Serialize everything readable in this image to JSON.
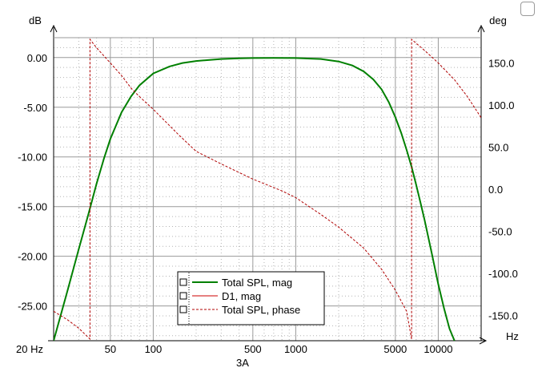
{
  "chart_data": {
    "type": "line",
    "xlabel": "3A",
    "x_unit": "Hz",
    "y_left_unit": "dB",
    "y_right_unit": "deg",
    "x_scale": "log",
    "xlim": [
      20,
      20000
    ],
    "ylim_left": [
      -28.5,
      2.0
    ],
    "ylim_right": [
      -180,
      180
    ],
    "x_ticks": [
      {
        "value": 20,
        "label": "20 Hz"
      },
      {
        "value": 50,
        "label": "50"
      },
      {
        "value": 100,
        "label": "100"
      },
      {
        "value": 500,
        "label": "500"
      },
      {
        "value": 1000,
        "label": "1000"
      },
      {
        "value": 5000,
        "label": "5000"
      },
      {
        "value": 10000,
        "label": "10000"
      }
    ],
    "y_left_ticks": [
      {
        "value": 0,
        "label": "0.00"
      },
      {
        "value": -5,
        "label": "-5.00"
      },
      {
        "value": -10,
        "label": "-10.00"
      },
      {
        "value": -15,
        "label": "-15.00"
      },
      {
        "value": -20,
        "label": "-20.00"
      },
      {
        "value": -25,
        "label": "-25.00"
      }
    ],
    "y_right_ticks": [
      {
        "value": 150,
        "label": "150.0"
      },
      {
        "value": 100,
        "label": "100.0"
      },
      {
        "value": 50,
        "label": "50.0"
      },
      {
        "value": 0,
        "label": "0.0"
      },
      {
        "value": -50,
        "label": "-50.0"
      },
      {
        "value": -100,
        "label": "-100.0"
      },
      {
        "value": -150,
        "label": "-150.0"
      }
    ],
    "grid": true,
    "legend_position": "bottom-center",
    "series": [
      {
        "name": "Total SPL, mag",
        "axis": "left",
        "color": "#008000",
        "style": "solid",
        "x": [
          20,
          25,
          30,
          35,
          40,
          45,
          50,
          60,
          70,
          80,
          100,
          130,
          160,
          200,
          300,
          400,
          500,
          700,
          1000,
          1500,
          2000,
          2500,
          3000,
          3500,
          4000,
          4500,
          5000,
          5500,
          6000,
          6500,
          7000,
          7500,
          8000,
          9000,
          10000,
          11000,
          12000,
          13000
        ],
        "values": [
          -28.5,
          -23.5,
          -19.3,
          -15.8,
          -12.7,
          -10.2,
          -8.2,
          -5.5,
          -3.9,
          -2.8,
          -1.6,
          -0.9,
          -0.55,
          -0.35,
          -0.15,
          -0.08,
          -0.05,
          -0.03,
          -0.05,
          -0.15,
          -0.4,
          -0.8,
          -1.4,
          -2.2,
          -3.2,
          -4.5,
          -6.0,
          -7.6,
          -9.3,
          -11.0,
          -12.8,
          -14.6,
          -16.3,
          -19.7,
          -22.8,
          -25.3,
          -27.3,
          -28.5
        ]
      },
      {
        "name": "D1, mag",
        "axis": "left",
        "color": "#cc0000",
        "style": "solid",
        "x": [],
        "values": []
      },
      {
        "name": "Total SPL, phase",
        "axis": "right",
        "color": "#b00000",
        "style": "dashed",
        "x": [
          20,
          25,
          30,
          36,
          36,
          40,
          50,
          60,
          70,
          80,
          100,
          150,
          200,
          300,
          500,
          800,
          1000,
          1500,
          2000,
          3000,
          4000,
          5000,
          6000,
          6500,
          6500,
          8000,
          10000,
          13000,
          16000,
          20000
        ],
        "values": [
          -145,
          -155,
          -165,
          -178,
          178,
          168,
          150,
          135,
          120,
          110,
          95,
          65,
          45,
          30,
          12,
          -2,
          -10,
          -30,
          -45,
          -70,
          -95,
          -120,
          -145,
          -178,
          178,
          165,
          150,
          130,
          110,
          85
        ]
      }
    ]
  }
}
